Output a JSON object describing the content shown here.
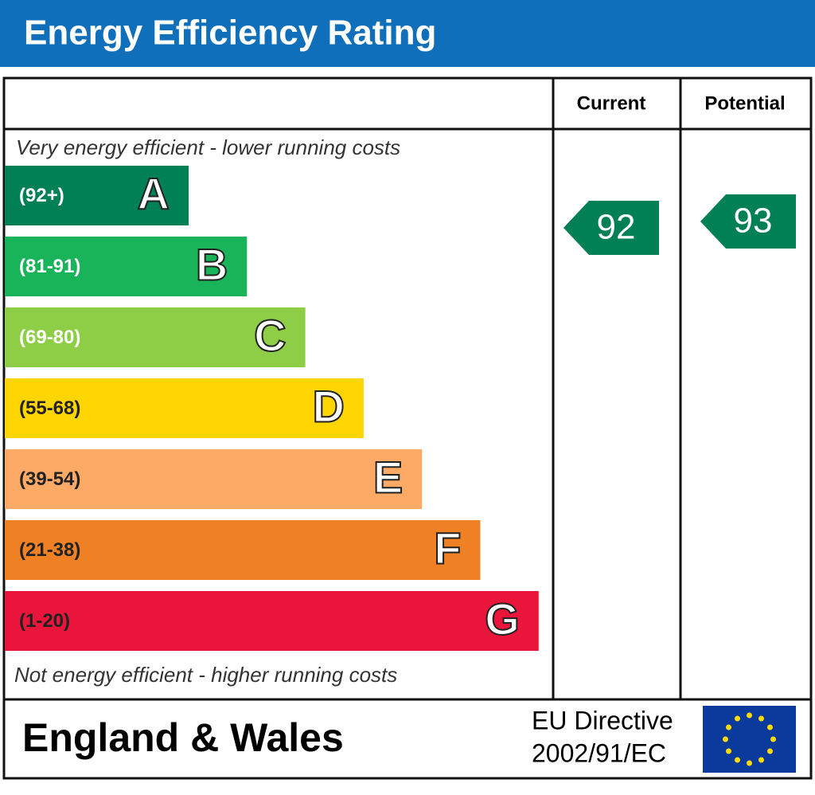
{
  "title": "Energy Efficiency Rating",
  "columns": [
    "Current",
    "Potential"
  ],
  "top_note": "Very energy efficient - lower running costs",
  "bottom_note": "Not energy efficient - higher running costs",
  "bands": [
    {
      "range": "(92+)",
      "letter": "A",
      "color": "#008054"
    },
    {
      "range": "(81-91)",
      "letter": "B",
      "color": "#19b459"
    },
    {
      "range": "(69-80)",
      "letter": "C",
      "color": "#8dce46"
    },
    {
      "range": "(55-68)",
      "letter": "D",
      "color": "#ffd500"
    },
    {
      "range": "(39-54)",
      "letter": "E",
      "color": "#fcaa65"
    },
    {
      "range": "(21-38)",
      "letter": "F",
      "color": "#ef8023"
    },
    {
      "range": "(1-20)",
      "letter": "G",
      "color": "#e9153b"
    }
  ],
  "current": {
    "value": "92",
    "color": "#008054"
  },
  "potential": {
    "value": "93",
    "color": "#008054"
  },
  "footer": {
    "region": "England & Wales",
    "directive_line1": "EU Directive",
    "directive_line2": "2002/91/EC"
  }
}
